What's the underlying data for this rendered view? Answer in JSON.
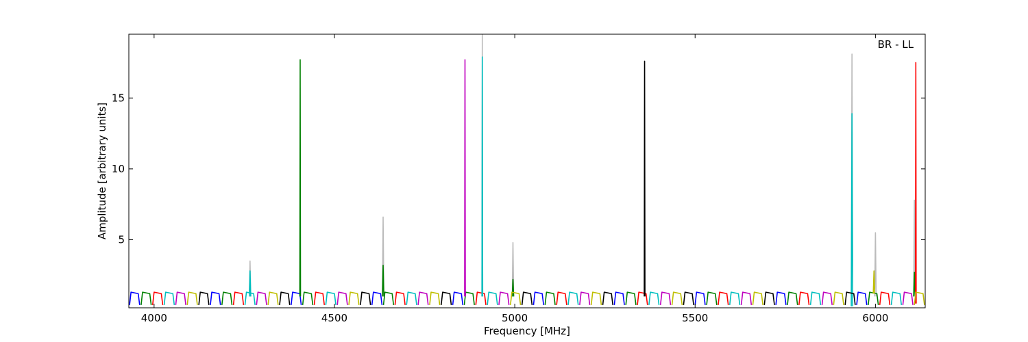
{
  "chart_data": {
    "type": "line",
    "annotation": "BR - LL",
    "xlabel": "Frequency [MHz]",
    "ylabel": "Amplitude [arbitrary units]",
    "xlim": [
      3930,
      6138
    ],
    "ylim": [
      0.2,
      19.5
    ],
    "xticks": [
      4000,
      4500,
      5000,
      5500,
      6000
    ],
    "yticks": [
      5,
      10,
      15
    ],
    "grid": false,
    "series": [
      {
        "color": "#bbbbbb",
        "x": [
          4264,
          4266,
          4268,
          null,
          4633,
          4635,
          4637,
          null,
          4909,
          4910,
          4911,
          null,
          4993,
          4995,
          4997,
          null,
          5933,
          5935,
          5937,
          null,
          5998,
          6000,
          6002,
          null,
          6106,
          6108,
          6110
        ],
        "values": [
          1,
          3.5,
          1,
          null,
          1,
          6.6,
          1,
          null,
          1,
          19.5,
          1,
          null,
          1,
          4.8,
          1,
          null,
          1,
          18.1,
          1,
          null,
          1,
          5.5,
          1,
          null,
          1,
          7.8,
          1
        ]
      },
      {
        "color": "#0000ff",
        "x": [
          3932,
          3936,
          3956,
          3960,
          null,
          4156,
          4160,
          4180,
          4184,
          null,
          4380,
          4384,
          4404,
          4408,
          null,
          4604,
          4608,
          4628,
          4632,
          null,
          4828,
          4832,
          4852,
          4856,
          null,
          5052,
          5056,
          5076,
          5080,
          null,
          5276,
          5280,
          5300,
          5304,
          null,
          5500,
          5504,
          5524,
          5528,
          null,
          5724,
          5728,
          5748,
          5752,
          null,
          5948,
          5952,
          5972,
          5976
        ],
        "values": [
          0.4,
          1.3,
          1.2,
          0.4,
          null,
          0.4,
          1.3,
          1.2,
          0.4,
          null,
          0.4,
          1.3,
          1.2,
          0.4,
          null,
          0.4,
          1.3,
          1.2,
          0.4,
          null,
          0.4,
          1.3,
          1.2,
          0.4,
          null,
          0.4,
          1.3,
          1.2,
          0.4,
          null,
          0.4,
          1.3,
          1.2,
          0.4,
          null,
          0.4,
          1.3,
          1.2,
          0.4,
          null,
          0.4,
          1.3,
          1.2,
          0.4,
          null,
          0.4,
          1.3,
          1.2,
          0.4
        ]
      },
      {
        "color": "#008000",
        "x": [
          3964,
          3968,
          3988,
          3992,
          null,
          4188,
          4192,
          4212,
          4216,
          null,
          4412,
          4416,
          4436,
          4440,
          null,
          4636,
          4640,
          4660,
          4664,
          null,
          4860,
          4864,
          4884,
          4888,
          null,
          5084,
          5088,
          5108,
          5112,
          null,
          5308,
          5312,
          5332,
          5336,
          null,
          5532,
          5536,
          5556,
          5560,
          null,
          5756,
          5760,
          5780,
          5784,
          null,
          5980,
          5984,
          6004,
          6008,
          null,
          4404,
          4405,
          4406,
          null,
          4633,
          4635,
          4637,
          null,
          4993,
          4995,
          4997,
          null,
          6106,
          6108,
          6110
        ],
        "values": [
          0.4,
          1.3,
          1.2,
          0.4,
          null,
          0.4,
          1.3,
          1.2,
          0.4,
          null,
          0.4,
          1.3,
          1.2,
          0.4,
          null,
          0.4,
          1.3,
          1.2,
          0.4,
          null,
          0.4,
          1.3,
          1.2,
          0.4,
          null,
          0.4,
          1.3,
          1.2,
          0.4,
          null,
          0.4,
          1.3,
          1.2,
          0.4,
          null,
          0.4,
          1.3,
          1.2,
          0.4,
          null,
          0.4,
          1.3,
          1.2,
          0.4,
          null,
          0.4,
          1.3,
          1.2,
          0.4,
          null,
          1,
          17.7,
          1,
          null,
          1,
          3.2,
          1,
          null,
          1,
          2.2,
          1,
          null,
          1,
          2.7,
          1
        ]
      },
      {
        "color": "#ff0000",
        "x": [
          3996,
          4000,
          4020,
          4024,
          null,
          4220,
          4224,
          4244,
          4248,
          null,
          4444,
          4448,
          4468,
          4472,
          null,
          4668,
          4672,
          4692,
          4696,
          null,
          4892,
          4896,
          4916,
          4920,
          null,
          5116,
          5120,
          5140,
          5144,
          null,
          5340,
          5344,
          5364,
          5368,
          null,
          5564,
          5568,
          5588,
          5592,
          null,
          5788,
          5792,
          5812,
          5816,
          null,
          6012,
          6016,
          6036,
          6040,
          null,
          6111,
          6112,
          6113
        ],
        "values": [
          0.4,
          1.3,
          1.2,
          0.4,
          null,
          0.4,
          1.3,
          1.2,
          0.4,
          null,
          0.4,
          1.3,
          1.2,
          0.4,
          null,
          0.4,
          1.3,
          1.2,
          0.4,
          null,
          0.4,
          1.3,
          1.2,
          0.4,
          null,
          0.4,
          1.3,
          1.2,
          0.4,
          null,
          0.4,
          1.3,
          1.2,
          0.4,
          null,
          0.4,
          1.3,
          1.2,
          0.4,
          null,
          0.4,
          1.3,
          1.2,
          0.4,
          null,
          0.4,
          1.3,
          1.2,
          0.4,
          null,
          0.5,
          17.5,
          0.5
        ]
      },
      {
        "color": "#00bfbf",
        "x": [
          4028,
          4032,
          4052,
          4056,
          null,
          4252,
          4256,
          4276,
          4280,
          null,
          4476,
          4480,
          4500,
          4504,
          null,
          4700,
          4704,
          4724,
          4728,
          null,
          4924,
          4928,
          4948,
          4952,
          null,
          5148,
          5152,
          5172,
          5176,
          null,
          5372,
          5376,
          5396,
          5400,
          null,
          5596,
          5600,
          5620,
          5624,
          null,
          5820,
          5824,
          5844,
          5848,
          null,
          6044,
          6048,
          6068,
          6072,
          null,
          4264,
          4266,
          4268,
          null,
          4909,
          4910,
          4911,
          null,
          5933,
          5935,
          5937
        ],
        "values": [
          0.4,
          1.3,
          1.2,
          0.4,
          null,
          0.4,
          1.3,
          1.2,
          0.4,
          null,
          0.4,
          1.3,
          1.2,
          0.4,
          null,
          0.4,
          1.3,
          1.2,
          0.4,
          null,
          0.4,
          1.3,
          1.2,
          0.4,
          null,
          0.4,
          1.3,
          1.2,
          0.4,
          null,
          0.4,
          1.3,
          1.2,
          0.4,
          null,
          0.4,
          1.3,
          1.2,
          0.4,
          null,
          0.4,
          1.3,
          1.2,
          0.4,
          null,
          0.4,
          1.3,
          1.2,
          0.4,
          null,
          1,
          2.8,
          1,
          null,
          1,
          17.9,
          1,
          null,
          0.3,
          13.9,
          0.3
        ]
      },
      {
        "color": "#bf00bf",
        "x": [
          4060,
          4064,
          4084,
          4088,
          null,
          4284,
          4288,
          4308,
          4312,
          null,
          4508,
          4512,
          4532,
          4536,
          null,
          4732,
          4736,
          4756,
          4760,
          null,
          4956,
          4960,
          4980,
          4984,
          null,
          5180,
          5184,
          5204,
          5208,
          null,
          5404,
          5408,
          5428,
          5432,
          null,
          5628,
          5632,
          5652,
          5656,
          null,
          5852,
          5856,
          5876,
          5880,
          null,
          6076,
          6080,
          6100,
          6104,
          null,
          4861,
          4862,
          4863
        ],
        "values": [
          0.4,
          1.3,
          1.2,
          0.4,
          null,
          0.4,
          1.3,
          1.2,
          0.4,
          null,
          0.4,
          1.3,
          1.2,
          0.4,
          null,
          0.4,
          1.3,
          1.2,
          0.4,
          null,
          0.4,
          1.3,
          1.2,
          0.4,
          null,
          0.4,
          1.3,
          1.2,
          0.4,
          null,
          0.4,
          1.3,
          1.2,
          0.4,
          null,
          0.4,
          1.3,
          1.2,
          0.4,
          null,
          0.4,
          1.3,
          1.2,
          0.4,
          null,
          0.4,
          1.3,
          1.2,
          0.4,
          null,
          1,
          17.7,
          1
        ]
      },
      {
        "color": "#bfbf00",
        "x": [
          4092,
          4096,
          4116,
          4120,
          null,
          4316,
          4320,
          4340,
          4344,
          null,
          4540,
          4544,
          4564,
          4568,
          null,
          4764,
          4768,
          4788,
          4792,
          null,
          4988,
          4992,
          5012,
          5016,
          null,
          5212,
          5216,
          5236,
          5240,
          null,
          5436,
          5440,
          5460,
          5464,
          null,
          5660,
          5664,
          5684,
          5688,
          null,
          5884,
          5888,
          5908,
          5912,
          null,
          6108,
          6112,
          6132,
          6136,
          null,
          5994,
          5996,
          5998
        ],
        "values": [
          0.4,
          1.3,
          1.2,
          0.4,
          null,
          0.4,
          1.3,
          1.2,
          0.4,
          null,
          0.4,
          1.3,
          1.2,
          0.4,
          null,
          0.4,
          1.3,
          1.2,
          0.4,
          null,
          0.4,
          1.3,
          1.2,
          0.4,
          null,
          0.4,
          1.3,
          1.2,
          0.4,
          null,
          0.4,
          1.3,
          1.2,
          0.4,
          null,
          0.4,
          1.3,
          1.2,
          0.4,
          null,
          0.4,
          1.3,
          1.2,
          0.4,
          null,
          0.4,
          1.3,
          1.2,
          0.4,
          null,
          1.2,
          2.8,
          1.2
        ]
      },
      {
        "color": "#000000",
        "x": [
          4124,
          4128,
          4148,
          4152,
          null,
          4348,
          4352,
          4372,
          4376,
          null,
          4572,
          4576,
          4596,
          4600,
          null,
          4796,
          4800,
          4820,
          4824,
          null,
          5020,
          5024,
          5044,
          5048,
          null,
          5244,
          5248,
          5268,
          5272,
          null,
          5468,
          5472,
          5492,
          5496,
          null,
          5692,
          5696,
          5716,
          5720,
          null,
          5916,
          5920,
          5940,
          5944,
          null,
          5359,
          5360,
          5361
        ],
        "values": [
          0.4,
          1.3,
          1.2,
          0.4,
          null,
          0.4,
          1.3,
          1.2,
          0.4,
          null,
          0.4,
          1.3,
          1.2,
          0.4,
          null,
          0.4,
          1.3,
          1.2,
          0.4,
          null,
          0.4,
          1.3,
          1.2,
          0.4,
          null,
          0.4,
          1.3,
          1.2,
          0.4,
          null,
          0.4,
          1.3,
          1.2,
          0.4,
          null,
          0.4,
          1.3,
          1.2,
          0.4,
          null,
          0.4,
          1.3,
          1.2,
          0.4,
          null,
          1,
          17.6,
          1
        ]
      }
    ]
  }
}
